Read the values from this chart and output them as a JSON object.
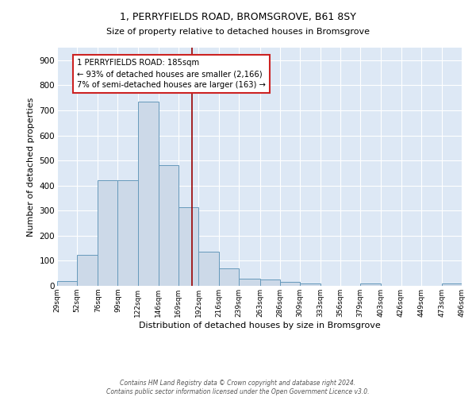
{
  "title": "1, PERRYFIELDS ROAD, BROMSGROVE, B61 8SY",
  "subtitle": "Size of property relative to detached houses in Bromsgrove",
  "xlabel": "Distribution of detached houses by size in Bromsgrove",
  "ylabel": "Number of detached properties",
  "bin_edges": [
    29,
    52,
    76,
    99,
    122,
    146,
    169,
    192,
    216,
    239,
    263,
    286,
    309,
    333,
    356,
    379,
    403,
    426,
    449,
    473,
    496
  ],
  "bar_heights": [
    20,
    125,
    420,
    420,
    735,
    480,
    315,
    135,
    70,
    30,
    25,
    15,
    10,
    0,
    0,
    10,
    0,
    0,
    0,
    10
  ],
  "bar_color": "#ccd9e8",
  "bar_edge_color": "#6699bb",
  "property_size": 185,
  "vline_color": "#990000",
  "annotation_text": "1 PERRYFIELDS ROAD: 185sqm\n← 93% of detached houses are smaller (2,166)\n7% of semi-detached houses are larger (163) →",
  "annotation_box_color": "white",
  "annotation_box_edge": "#cc2222",
  "footer": "Contains HM Land Registry data © Crown copyright and database right 2024.\nContains public sector information licensed under the Open Government Licence v3.0.",
  "background_color": "#dde8f5",
  "ylim": [
    0,
    950
  ],
  "yticks": [
    0,
    100,
    200,
    300,
    400,
    500,
    600,
    700,
    800,
    900
  ],
  "figsize": [
    6.0,
    5.0
  ],
  "dpi": 100
}
